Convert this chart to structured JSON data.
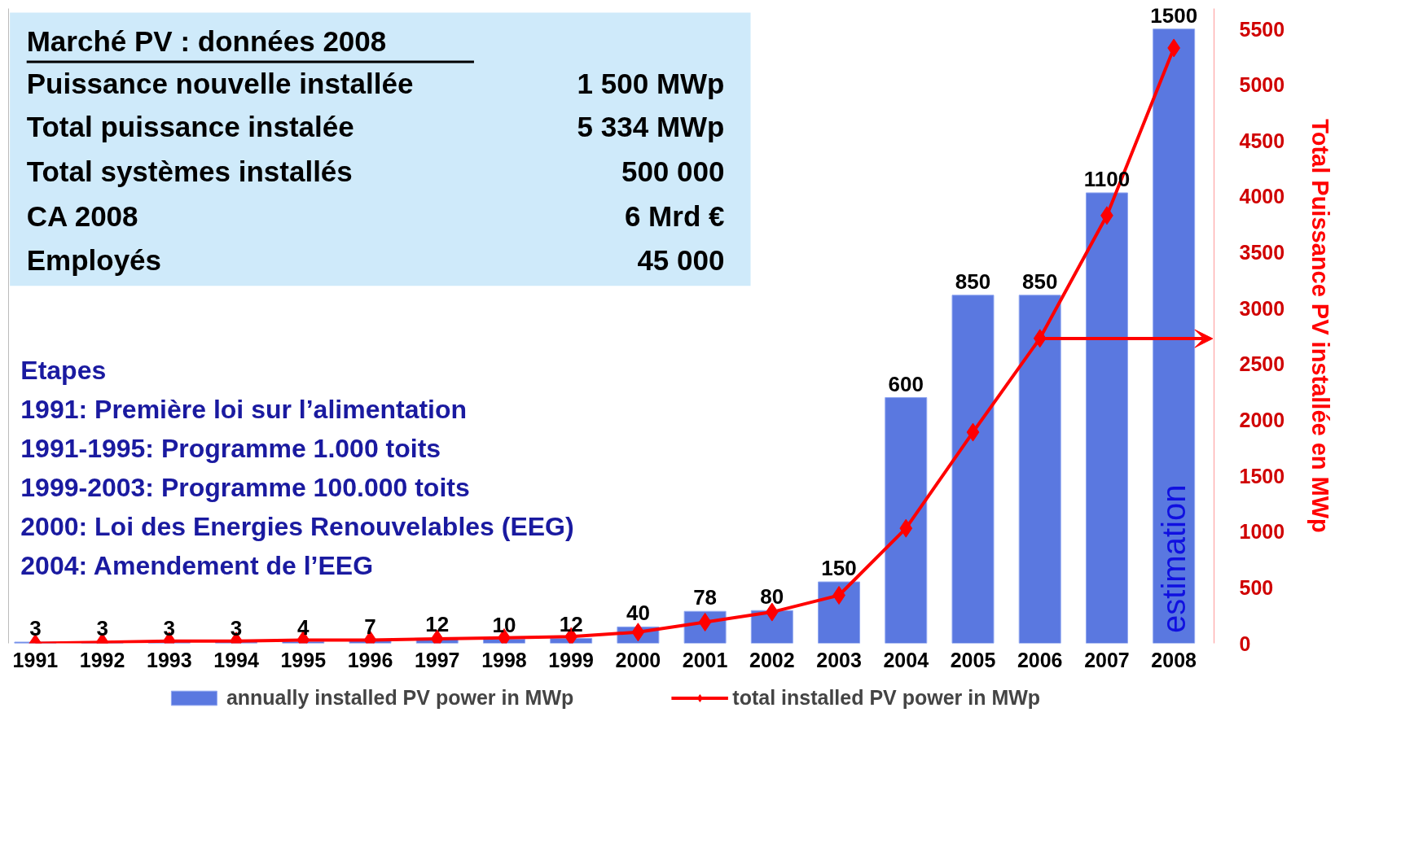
{
  "chart_data": {
    "type": "bar",
    "categories": [
      "1991",
      "1992",
      "1993",
      "1994",
      "1995",
      "1996",
      "1997",
      "1998",
      "1999",
      "2000",
      "2001",
      "2002",
      "2003",
      "2004",
      "2005",
      "2006",
      "2007",
      "2008"
    ],
    "series": [
      {
        "name": "annually installed PV power in MWp",
        "color": "#5a78e0",
        "values": [
          3,
          3,
          3,
          3,
          4,
          7,
          12,
          10,
          12,
          40,
          78,
          80,
          150,
          600,
          850,
          850,
          1100,
          1500
        ],
        "value_labels": [
          "3",
          "3",
          "3",
          "3",
          "4",
          "7",
          "12",
          "10",
          "12",
          "40",
          "78",
          "80",
          "150",
          "600",
          "850",
          "850",
          "1100",
          "1500"
        ]
      },
      {
        "name": "total installed PV power in MWp",
        "type": "line",
        "axis": "y2",
        "color": "#ff0000",
        "marker": "diamond",
        "values": [
          0,
          10,
          20,
          20,
          30,
          30,
          40,
          50,
          60,
          100,
          190,
          280,
          430,
          1030,
          1890,
          2730,
          3830,
          5330
        ]
      }
    ],
    "ylim": [
      0,
      1550
    ],
    "y2lim": [
      0,
      5683
    ],
    "y2ticks": [
      0,
      500,
      1000,
      1500,
      2000,
      2500,
      3000,
      3500,
      4000,
      4500,
      5000,
      5500
    ],
    "y2label": "Total Puissance PV installée en MWp",
    "grid": false,
    "legend": "bottom",
    "annotations": [
      "Marché PV : données 2008",
      "Puissance nouvelle installée",
      "1 500 MWp",
      "Total puissance instalée",
      "5 334 MWp",
      "Total systèmes installés",
      "500 000",
      "CA 2008",
      "6 Mrd €",
      "Employés",
      "45 000",
      "Etapes",
      "1991: Première loi sur l’alimentation",
      "1991-1995: Programme 1.000 toits",
      "1999-2003: Programme 100.000 toits",
      "2000: Loi des Energies Renouvelables (EEG)",
      "2004: Amendement de l’EEG",
      "estimation"
    ]
  }
}
